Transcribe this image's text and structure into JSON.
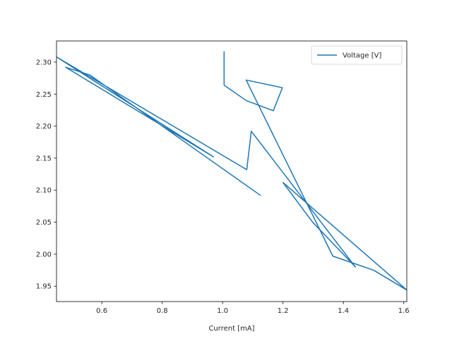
{
  "chart_data": {
    "type": "line",
    "title": "",
    "xlabel": "Current [mA]",
    "ylabel": "",
    "xlim": [
      0.45,
      1.61
    ],
    "ylim": [
      1.926,
      2.333
    ],
    "xticks": [
      0.6,
      0.8,
      1.0,
      1.2,
      1.4,
      1.6
    ],
    "xtick_labels": [
      "0.6",
      "0.8",
      "1.0",
      "1.2",
      "1.4",
      "1.6"
    ],
    "yticks": [
      1.95,
      2.0,
      2.05,
      2.1,
      2.15,
      2.2,
      2.25,
      2.3
    ],
    "ytick_labels": [
      "1.95",
      "2.00",
      "2.05",
      "2.10",
      "2.15",
      "2.20",
      "2.25",
      "2.30"
    ],
    "grid": false,
    "legend_position": "top-right",
    "series": [
      {
        "name": "Voltage [V]",
        "color": "#1f77b4",
        "x": [
          1.005,
          1.005,
          1.005,
          1.078,
          1.168,
          1.198,
          1.078,
          1.365,
          1.5,
          1.61,
          1.2,
          1.298,
          1.44,
          1.095,
          1.08,
          0.45,
          0.97,
          0.48,
          0.56,
          1.125
        ],
        "y": [
          2.316,
          2.265,
          2.264,
          2.24,
          2.224,
          2.26,
          2.272,
          1.997,
          1.975,
          1.944,
          2.112,
          2.05,
          1.98,
          2.192,
          2.132,
          2.308,
          2.152,
          2.292,
          2.28,
          2.092
        ]
      }
    ]
  }
}
